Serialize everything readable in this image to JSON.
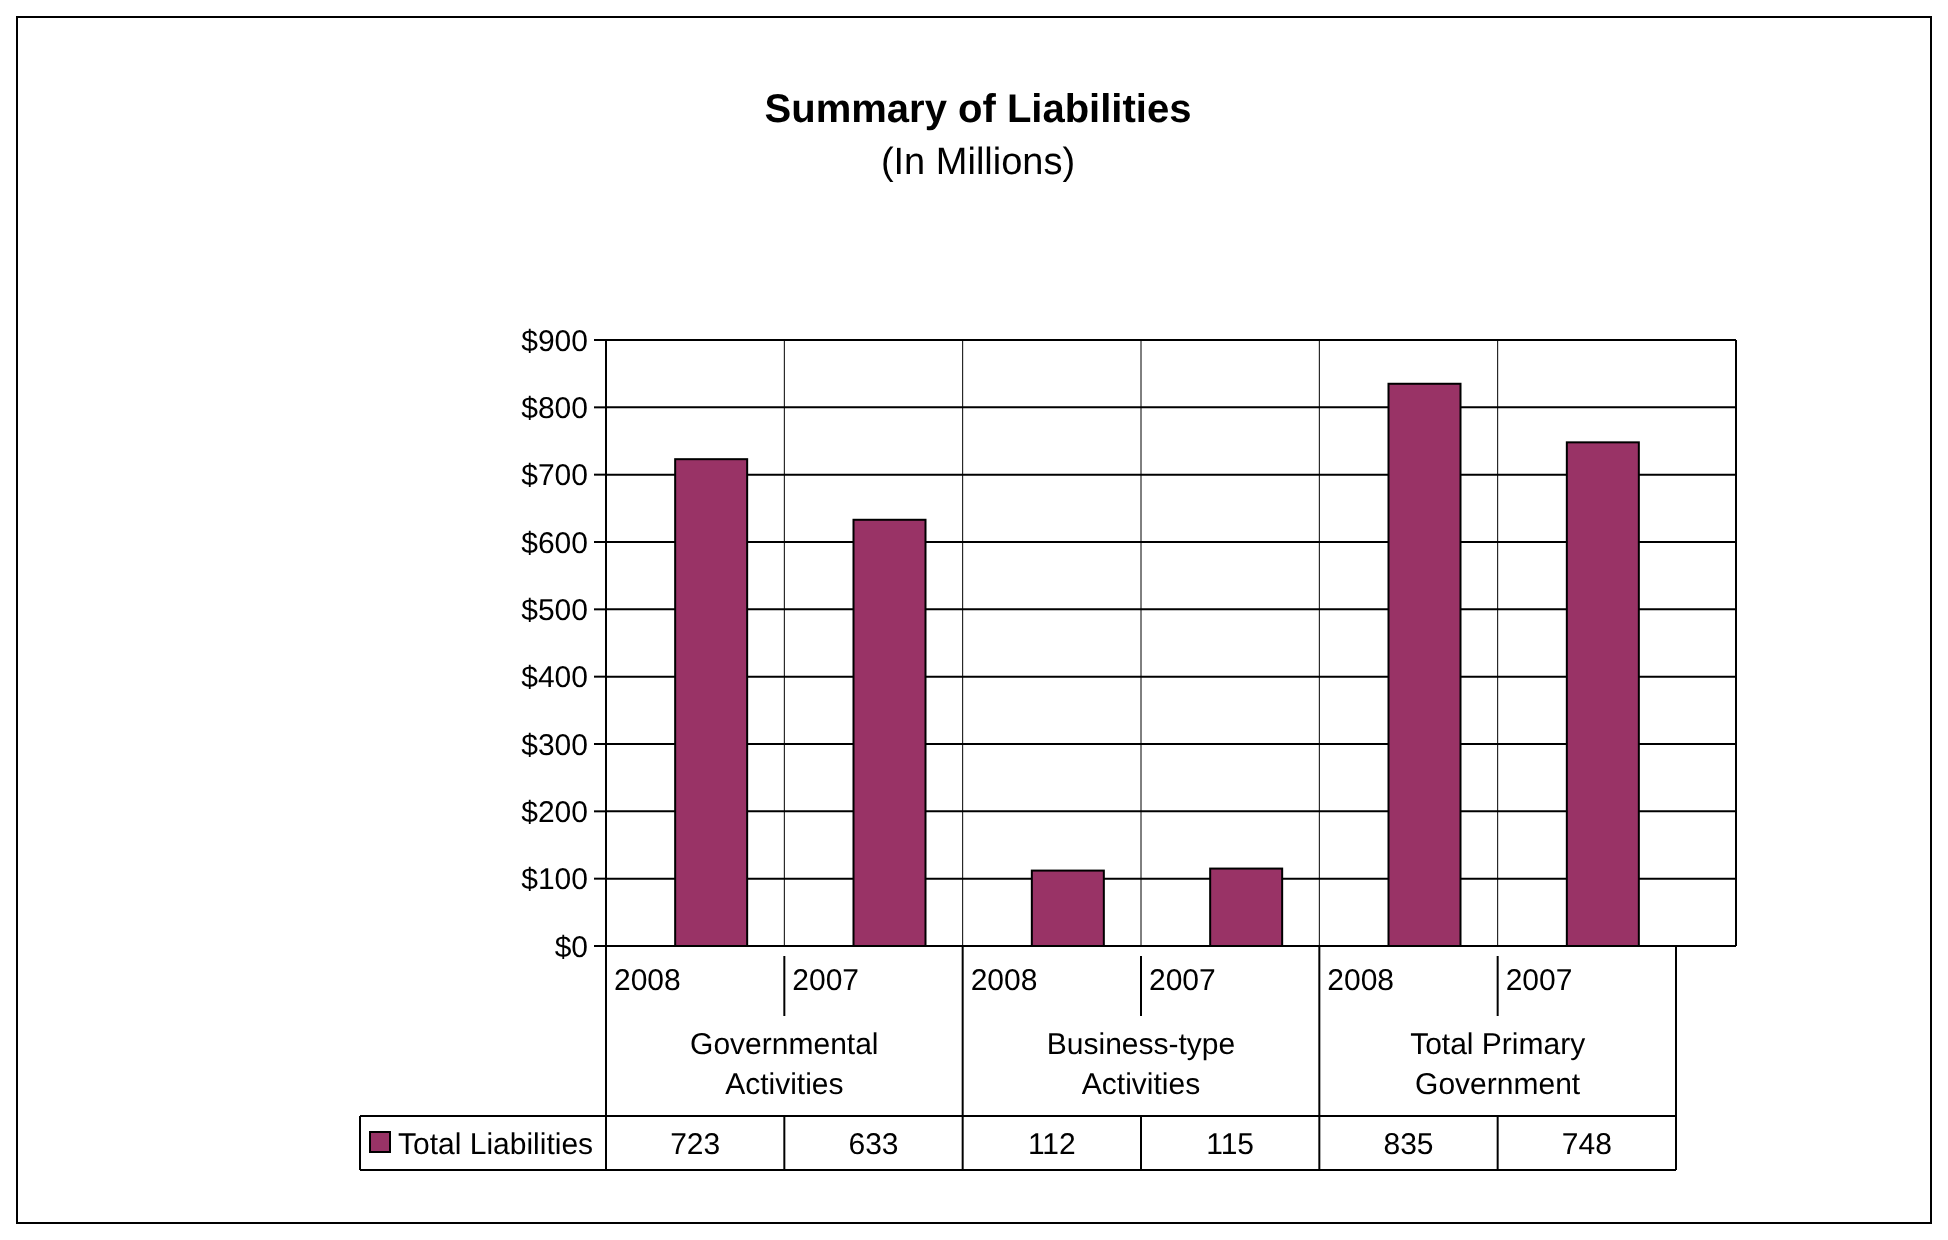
{
  "chart_data": {
    "type": "bar",
    "title": "Summary of Liabilities",
    "subtitle": "(In Millions)",
    "categories": [
      "2008",
      "2007",
      "2008",
      "2007",
      "2008",
      "2007"
    ],
    "series": [
      {
        "name": "Total Liabilities",
        "color": "#993366",
        "values": [
          723,
          633,
          112,
          115,
          835,
          748
        ]
      }
    ],
    "ylim": [
      0,
      900
    ],
    "yticks": [
      {
        "value": 0,
        "label": "$0"
      },
      {
        "value": 100,
        "label": "$100"
      },
      {
        "value": 200,
        "label": "$200"
      },
      {
        "value": 300,
        "label": "$300"
      },
      {
        "value": 400,
        "label": "$400"
      },
      {
        "value": 500,
        "label": "$500"
      },
      {
        "value": 600,
        "label": "$600"
      },
      {
        "value": 700,
        "label": "$700"
      },
      {
        "value": 800,
        "label": "$800"
      },
      {
        "value": 900,
        "label": "$900"
      }
    ],
    "grid": "y",
    "legend": "bottom left",
    "data_labels": true,
    "annotations": [
      "Governmental Activities",
      "Business-type Activities",
      "Total Primary Government"
    ]
  }
}
